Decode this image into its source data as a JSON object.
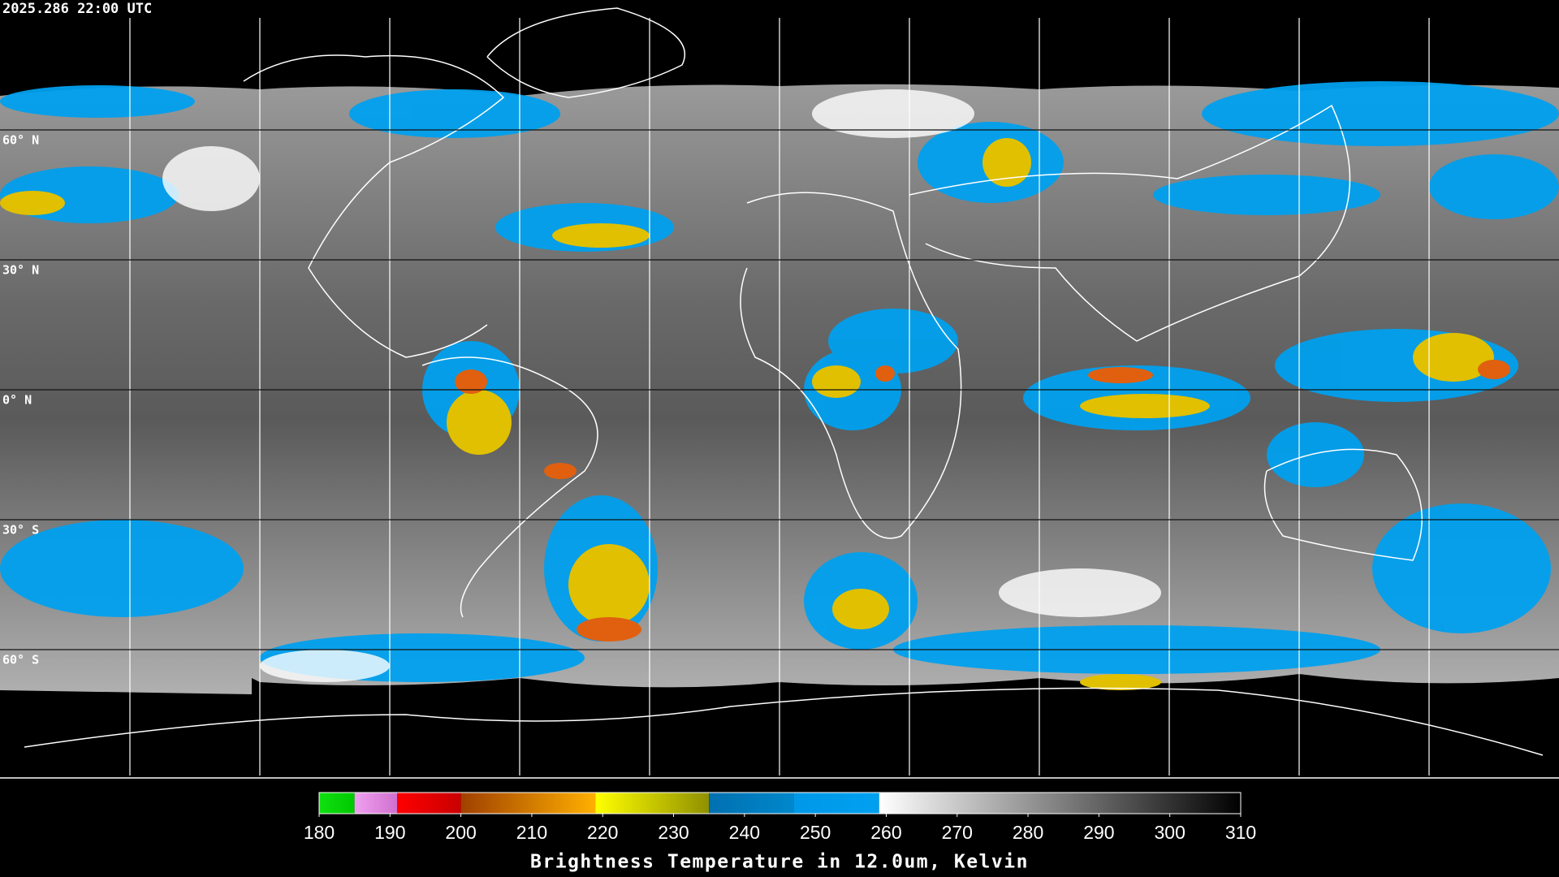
{
  "timestamp": "2025.286 22:00 UTC",
  "latitude_lines": [
    {
      "value": 60,
      "label": "60° N"
    },
    {
      "value": 30,
      "label": "30° N"
    },
    {
      "value": 0,
      "label": "0° N"
    },
    {
      "value": -30,
      "label": "30° S"
    },
    {
      "value": -60,
      "label": "60° S"
    }
  ],
  "colorbar": {
    "title": "Brightness Temperature in 12.0um, Kelvin",
    "range": [
      180,
      310
    ],
    "ticks": [
      180,
      190,
      200,
      210,
      220,
      230,
      240,
      250,
      260,
      270,
      280,
      290,
      300,
      310
    ],
    "segments": [
      {
        "from": 180,
        "to": 185,
        "color_start": "#10e010",
        "color_end": "#00c800"
      },
      {
        "from": 185,
        "to": 191,
        "color_start": "#f0a0f0",
        "color_end": "#d070d0"
      },
      {
        "from": 191,
        "to": 200,
        "color_start": "#ff0000",
        "color_end": "#c80000"
      },
      {
        "from": 200,
        "to": 219,
        "color_start": "#a04000",
        "color_end": "#ffb000"
      },
      {
        "from": 219,
        "to": 235,
        "color_start": "#ffff00",
        "color_end": "#909000"
      },
      {
        "from": 235,
        "to": 247,
        "color_start": "#0070b0",
        "color_end": "#0088cc"
      },
      {
        "from": 247,
        "to": 259,
        "color_start": "#0098e8",
        "color_end": "#00a0f0"
      },
      {
        "from": 259,
        "to": 310,
        "color_start": "#ffffff",
        "color_end": "#000000"
      }
    ]
  }
}
